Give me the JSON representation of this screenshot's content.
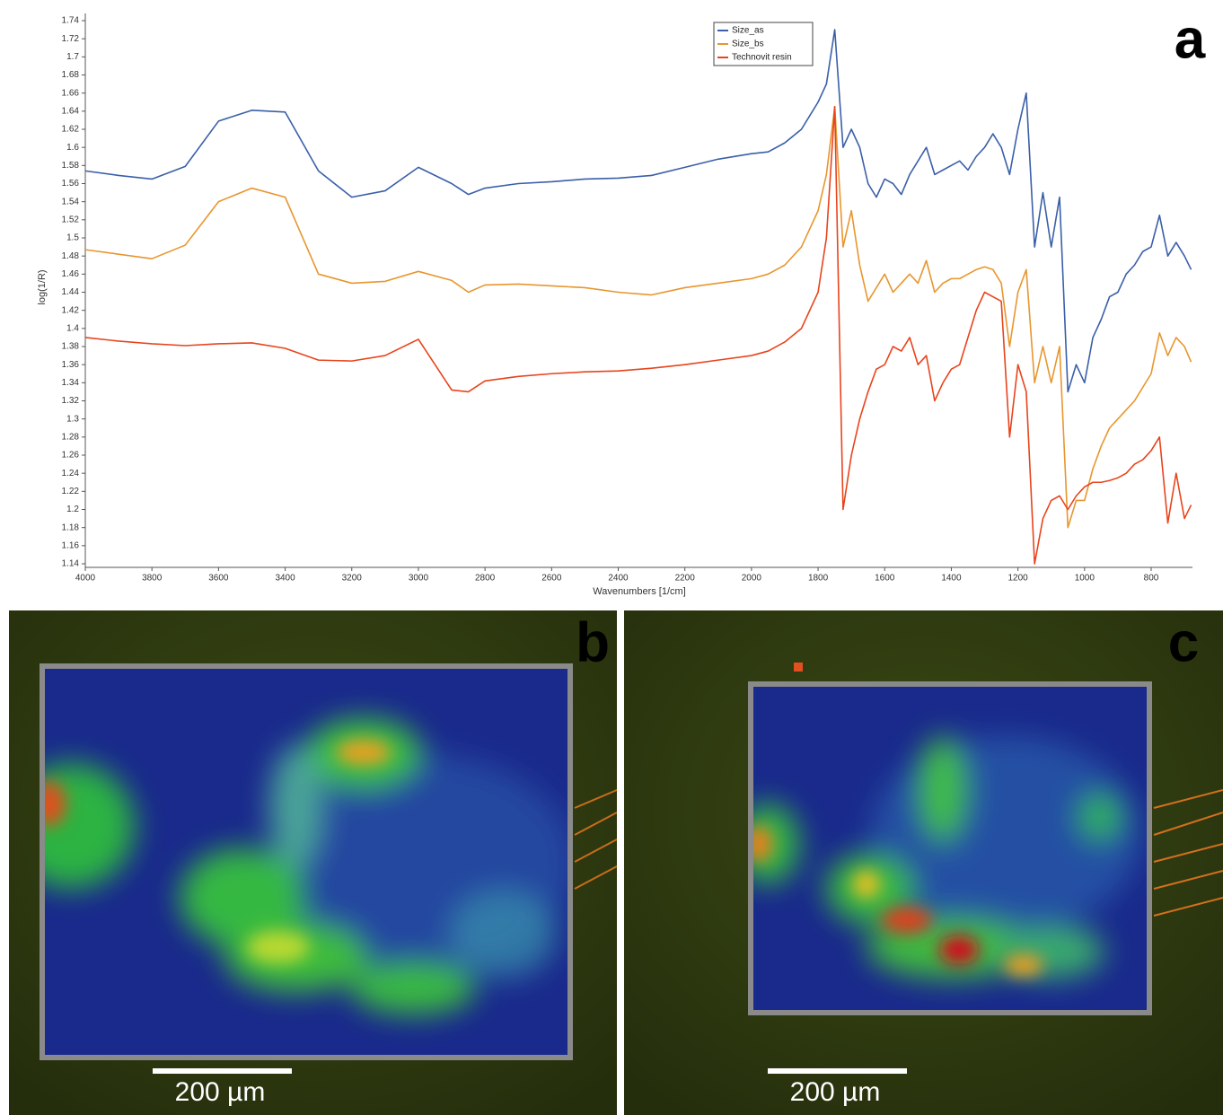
{
  "chart_data": {
    "type": "line",
    "panel_label": "a",
    "xlabel": "Wavenumbers [1/cm]",
    "ylabel": "log(1/R)",
    "x": [
      4000,
      3900,
      3800,
      3700,
      3600,
      3500,
      3400,
      3300,
      3200,
      3100,
      3000,
      2900,
      2850,
      2800,
      2700,
      2600,
      2500,
      2400,
      2300,
      2200,
      2100,
      2000,
      1950,
      1900,
      1850,
      1800,
      1775,
      1750,
      1725,
      1700,
      1675,
      1650,
      1625,
      1600,
      1575,
      1550,
      1525,
      1500,
      1475,
      1450,
      1425,
      1400,
      1375,
      1350,
      1325,
      1300,
      1275,
      1250,
      1225,
      1200,
      1175,
      1150,
      1125,
      1100,
      1075,
      1050,
      1025,
      1000,
      975,
      950,
      925,
      900,
      875,
      850,
      825,
      800,
      775,
      750,
      725,
      700,
      680
    ],
    "series": [
      {
        "name": "Size_as",
        "color": "#3a5fa8",
        "values": [
          1.574,
          1.569,
          1.565,
          1.579,
          1.629,
          1.641,
          1.639,
          1.574,
          1.545,
          1.552,
          1.578,
          1.56,
          1.548,
          1.555,
          1.56,
          1.562,
          1.565,
          1.566,
          1.569,
          1.578,
          1.587,
          1.593,
          1.595,
          1.605,
          1.62,
          1.65,
          1.67,
          1.73,
          1.6,
          1.62,
          1.6,
          1.56,
          1.545,
          1.565,
          1.56,
          1.548,
          1.57,
          1.585,
          1.6,
          1.57,
          1.575,
          1.58,
          1.585,
          1.575,
          1.59,
          1.6,
          1.615,
          1.6,
          1.57,
          1.62,
          1.66,
          1.49,
          1.55,
          1.49,
          1.545,
          1.33,
          1.36,
          1.34,
          1.39,
          1.41,
          1.435,
          1.44,
          1.46,
          1.47,
          1.485,
          1.49,
          1.525,
          1.48,
          1.495,
          1.48,
          1.465
        ]
      },
      {
        "name": "Size_bs",
        "color": "#e8962e",
        "values": [
          1.487,
          1.482,
          1.477,
          1.492,
          1.54,
          1.555,
          1.545,
          1.46,
          1.45,
          1.452,
          1.463,
          1.453,
          1.44,
          1.448,
          1.449,
          1.447,
          1.445,
          1.44,
          1.437,
          1.445,
          1.45,
          1.455,
          1.46,
          1.47,
          1.49,
          1.53,
          1.57,
          1.645,
          1.49,
          1.53,
          1.47,
          1.43,
          1.445,
          1.46,
          1.44,
          1.45,
          1.46,
          1.45,
          1.475,
          1.44,
          1.45,
          1.455,
          1.455,
          1.46,
          1.465,
          1.468,
          1.465,
          1.45,
          1.38,
          1.44,
          1.465,
          1.34,
          1.38,
          1.34,
          1.38,
          1.18,
          1.21,
          1.21,
          1.245,
          1.27,
          1.29,
          1.3,
          1.31,
          1.32,
          1.335,
          1.35,
          1.395,
          1.37,
          1.39,
          1.38,
          1.363
        ]
      },
      {
        "name": "Technovit resin",
        "color": "#e8441c",
        "values": [
          1.39,
          1.386,
          1.383,
          1.381,
          1.383,
          1.384,
          1.378,
          1.365,
          1.364,
          1.37,
          1.388,
          1.332,
          1.33,
          1.342,
          1.347,
          1.35,
          1.352,
          1.353,
          1.356,
          1.36,
          1.365,
          1.37,
          1.375,
          1.385,
          1.4,
          1.44,
          1.5,
          1.645,
          1.2,
          1.26,
          1.3,
          1.33,
          1.355,
          1.36,
          1.38,
          1.375,
          1.39,
          1.36,
          1.37,
          1.32,
          1.34,
          1.355,
          1.36,
          1.39,
          1.42,
          1.44,
          1.435,
          1.43,
          1.28,
          1.36,
          1.33,
          1.14,
          1.19,
          1.21,
          1.215,
          1.2,
          1.215,
          1.225,
          1.23,
          1.23,
          1.232,
          1.235,
          1.24,
          1.25,
          1.255,
          1.265,
          1.28,
          1.185,
          1.24,
          1.19,
          1.205
        ]
      }
    ],
    "xlim": [
      4000,
      676
    ],
    "ylim": [
      1.14,
      1.74
    ],
    "xticks": [
      4000,
      3800,
      3600,
      3400,
      3200,
      3000,
      2800,
      2600,
      2400,
      2200,
      2000,
      1800,
      1600,
      1400,
      1200,
      1000,
      800
    ],
    "yticks": [
      1.14,
      1.16,
      1.18,
      1.2,
      1.22,
      1.24,
      1.26,
      1.28,
      1.3,
      1.32,
      1.34,
      1.36,
      1.38,
      1.4,
      1.42,
      1.44,
      1.46,
      1.48,
      1.5,
      1.52,
      1.54,
      1.56,
      1.58,
      1.6,
      1.62,
      1.64,
      1.66,
      1.68,
      1.7,
      1.72,
      1.74
    ],
    "legend": "upper center"
  },
  "panels": [
    {
      "label": "b",
      "scale_bar": "200 µm"
    },
    {
      "label": "c",
      "scale_bar": "200 µm"
    }
  ]
}
